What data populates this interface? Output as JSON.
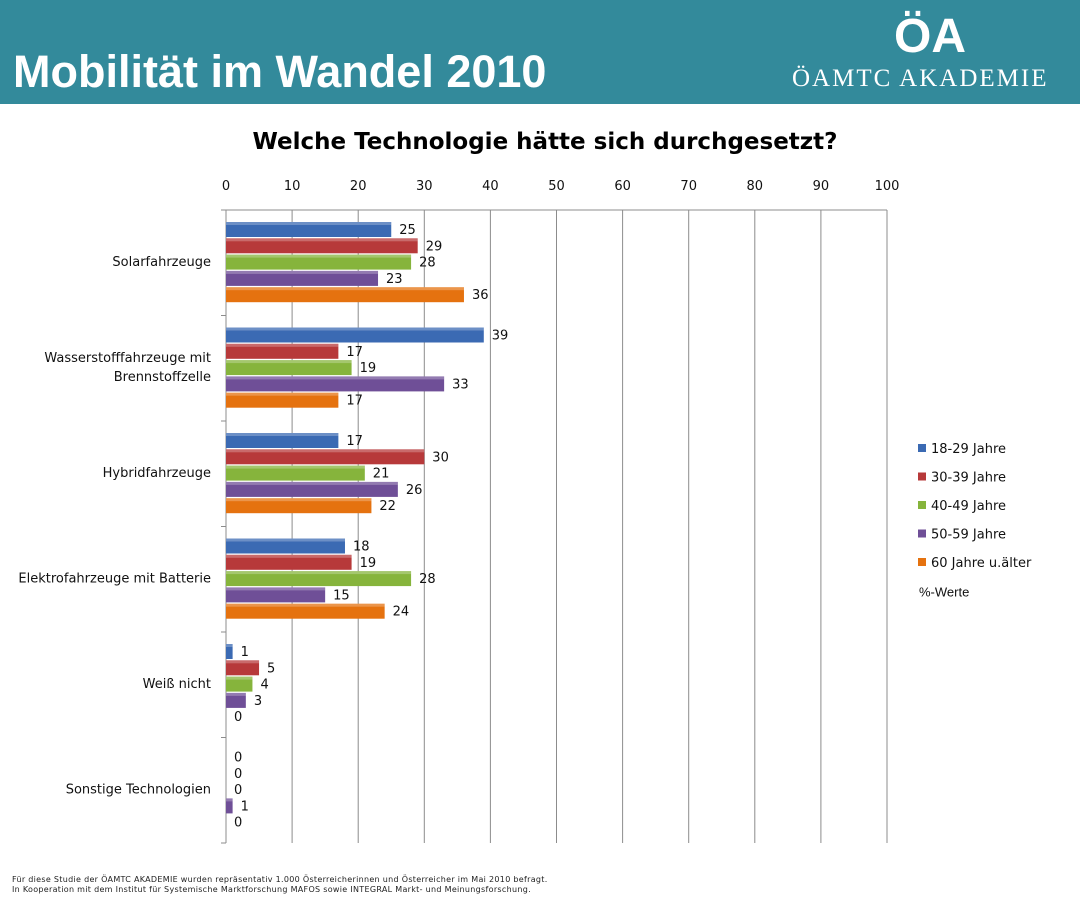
{
  "header": {
    "title": "Mobilität im Wandel 2010",
    "brand": "ÖAMTC AKADEMIE",
    "logo_text": "ÖA",
    "background_color": "#338a9b"
  },
  "chart_data": {
    "type": "bar",
    "orientation": "horizontal",
    "title": "Welche Technologie hätte sich durchgesetzt?",
    "unit_note": "%-Werte",
    "xlim": [
      0,
      100
    ],
    "x_ticks": [
      "0",
      "10",
      "20",
      "30",
      "40",
      "50",
      "60",
      "70",
      "80",
      "90",
      "100"
    ],
    "x_axis_position": "top",
    "grid": true,
    "legend_position": "right",
    "categories": [
      [
        "Solarfahrzeuge"
      ],
      [
        "Wasserstofffahrzeuge mit",
        "Brennstoffzelle"
      ],
      [
        "Hybridfahrzeuge"
      ],
      [
        "Elektrofahrzeuge mit Batterie"
      ],
      [
        "Weiß nicht"
      ],
      [
        "Sonstige Technologien"
      ]
    ],
    "series": [
      {
        "name": "18-29 Jahre",
        "color": "#3b6ab3",
        "values": [
          25,
          39,
          17,
          18,
          1,
          0
        ]
      },
      {
        "name": "30-39 Jahre",
        "color": "#b7393a",
        "values": [
          29,
          17,
          30,
          19,
          5,
          0
        ]
      },
      {
        "name": "40-49 Jahre",
        "color": "#86b43c",
        "values": [
          28,
          19,
          21,
          28,
          4,
          0
        ]
      },
      {
        "name": "50-59 Jahre",
        "color": "#6f4f97",
        "values": [
          23,
          33,
          26,
          15,
          3,
          1
        ]
      },
      {
        "name": "60 Jahre u.älter",
        "color": "#e5720f",
        "values": [
          36,
          17,
          22,
          24,
          0,
          0
        ]
      }
    ]
  },
  "footer": {
    "line1": "Für diese Studie der ÖAMTC AKADEMIE wurden repräsentativ 1.000 Österreicherinnen und Österreicher im Mai 2010 befragt.",
    "line2": "In Kooperation mit dem Institut für Systemische Marktforschung MAFOS sowie INTEGRAL Markt- und Meinungsforschung."
  }
}
